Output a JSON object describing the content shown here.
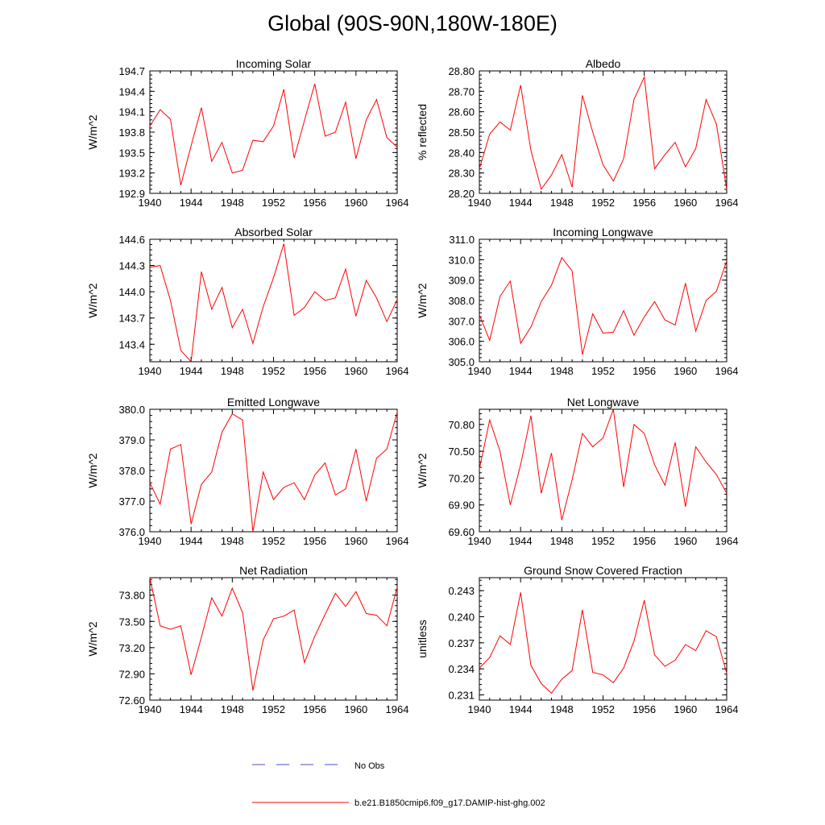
{
  "title": "Global (90S-90N,180W-180E)",
  "colors": {
    "model": "#ff0000",
    "obs": "#4a4ad0",
    "axis": "#000000"
  },
  "legend": {
    "obs_label": "No Obs",
    "model_label": "b.e21.B1850cmip6.f09_g17.DAMIP-hist-ghg.002"
  },
  "chart_data": [
    {
      "type": "line",
      "title": "Incoming Solar",
      "ylabel": "W/m^2",
      "xlim": [
        1940,
        1964
      ],
      "ylim": [
        192.9,
        194.7
      ],
      "x_ticks": [
        "1940",
        "1944",
        "1948",
        "1952",
        "1956",
        "1960",
        "1964"
      ],
      "y_ticks": [
        "192.9",
        "193.2",
        "193.5",
        "193.8",
        "194.1",
        "194.4",
        "194.7"
      ],
      "series": [
        {
          "x": [
            1940,
            1941,
            1942,
            1943,
            1944,
            1945,
            1946,
            1947,
            1948,
            1949,
            1950,
            1951,
            1952,
            1953,
            1954,
            1955,
            1956,
            1957,
            1958,
            1959,
            1960,
            1961,
            1962,
            1963,
            1964
          ],
          "values": [
            193.89,
            194.13,
            193.99,
            193.02,
            193.6,
            194.16,
            193.37,
            193.65,
            193.2,
            193.24,
            193.68,
            193.66,
            193.89,
            194.43,
            193.42,
            193.97,
            194.51,
            193.74,
            193.8,
            194.24,
            193.41,
            193.98,
            194.28,
            193.72,
            193.58
          ]
        }
      ]
    },
    {
      "type": "line",
      "title": "Albedo",
      "ylabel": "% reflected",
      "xlim": [
        1940,
        1964
      ],
      "ylim": [
        28.2,
        28.8
      ],
      "x_ticks": [
        "1940",
        "1944",
        "1948",
        "1952",
        "1956",
        "1960",
        "1964"
      ],
      "y_ticks": [
        "28.20",
        "28.30",
        "28.40",
        "28.50",
        "28.60",
        "28.70",
        "28.80"
      ],
      "series": [
        {
          "x": [
            1940,
            1941,
            1942,
            1943,
            1944,
            1945,
            1946,
            1947,
            1948,
            1949,
            1950,
            1951,
            1952,
            1953,
            1954,
            1955,
            1956,
            1957,
            1958,
            1959,
            1960,
            1961,
            1962,
            1963,
            1964
          ],
          "values": [
            28.32,
            28.49,
            28.55,
            28.51,
            28.73,
            28.41,
            28.22,
            28.29,
            28.39,
            28.23,
            28.68,
            28.5,
            28.34,
            28.26,
            28.37,
            28.66,
            28.77,
            28.32,
            28.39,
            28.45,
            28.33,
            28.42,
            28.66,
            28.54,
            28.22
          ]
        }
      ]
    },
    {
      "type": "line",
      "title": "Absorbed Solar",
      "ylabel": "W/m^2",
      "xlim": [
        1940,
        1964
      ],
      "ylim": [
        143.2,
        144.6
      ],
      "x_ticks": [
        "1940",
        "1944",
        "1948",
        "1952",
        "1956",
        "1960",
        "1964"
      ],
      "y_ticks": [
        "143.4",
        "143.7",
        "144.0",
        "144.3",
        "144.6"
      ],
      "series": [
        {
          "x": [
            1940,
            1941,
            1942,
            1943,
            1944,
            1945,
            1946,
            1947,
            1948,
            1949,
            1950,
            1951,
            1952,
            1953,
            1954,
            1955,
            1956,
            1957,
            1958,
            1959,
            1960,
            1961,
            1962,
            1963,
            1964
          ],
          "values": [
            144.28,
            144.3,
            143.9,
            143.33,
            143.2,
            144.23,
            143.8,
            144.05,
            143.59,
            143.8,
            143.41,
            143.83,
            144.16,
            144.55,
            143.73,
            143.82,
            144.0,
            143.9,
            143.93,
            144.26,
            143.72,
            144.13,
            143.93,
            143.66,
            143.91
          ]
        }
      ]
    },
    {
      "type": "line",
      "title": "Incoming Longwave",
      "ylabel": "W/m^2",
      "xlim": [
        1940,
        1964
      ],
      "ylim": [
        305.0,
        311.0
      ],
      "x_ticks": [
        "1940",
        "1944",
        "1948",
        "1952",
        "1956",
        "1960",
        "1964"
      ],
      "y_ticks": [
        "305.0",
        "306.0",
        "307.0",
        "308.0",
        "309.0",
        "310.0",
        "311.0"
      ],
      "series": [
        {
          "x": [
            1940,
            1941,
            1942,
            1943,
            1944,
            1945,
            1946,
            1947,
            1948,
            1949,
            1950,
            1951,
            1952,
            1953,
            1954,
            1955,
            1956,
            1957,
            1958,
            1959,
            1960,
            1961,
            1962,
            1963,
            1964
          ],
          "values": [
            307.3,
            306.05,
            308.2,
            308.95,
            305.9,
            306.7,
            307.95,
            308.75,
            310.1,
            309.45,
            305.35,
            307.35,
            306.4,
            306.45,
            307.5,
            306.3,
            307.2,
            307.95,
            307.05,
            306.8,
            308.85,
            306.5,
            308.0,
            308.45,
            309.95
          ]
        }
      ]
    },
    {
      "type": "line",
      "title": "Emitted Longwave",
      "ylabel": "W/m^2",
      "xlim": [
        1940,
        1964
      ],
      "ylim": [
        376.0,
        380.0
      ],
      "x_ticks": [
        "1940",
        "1944",
        "1948",
        "1952",
        "1956",
        "1960",
        "1964"
      ],
      "y_ticks": [
        "376.0",
        "377.0",
        "378.0",
        "379.0",
        "380.0"
      ],
      "series": [
        {
          "x": [
            1940,
            1941,
            1942,
            1943,
            1944,
            1945,
            1946,
            1947,
            1948,
            1949,
            1950,
            1951,
            1952,
            1953,
            1954,
            1955,
            1956,
            1957,
            1958,
            1959,
            1960,
            1961,
            1962,
            1963,
            1964
          ],
          "values": [
            377.6,
            376.9,
            378.7,
            378.85,
            376.25,
            377.55,
            377.95,
            379.25,
            379.85,
            379.65,
            376.0,
            377.95,
            377.05,
            377.45,
            377.6,
            377.05,
            377.85,
            378.25,
            377.2,
            377.4,
            378.7,
            377.0,
            378.4,
            378.7,
            379.9
          ]
        }
      ]
    },
    {
      "type": "line",
      "title": "Net Longwave",
      "ylabel": "W/m^2",
      "xlim": [
        1940,
        1964
      ],
      "ylim": [
        69.6,
        70.97
      ],
      "x_ticks": [
        "1940",
        "1944",
        "1948",
        "1952",
        "1956",
        "1960",
        "1964"
      ],
      "y_ticks": [
        "69.60",
        "69.90",
        "70.20",
        "70.50",
        "70.80"
      ],
      "series": [
        {
          "x": [
            1940,
            1941,
            1942,
            1943,
            1944,
            1945,
            1946,
            1947,
            1948,
            1949,
            1950,
            1951,
            1952,
            1953,
            1954,
            1955,
            1956,
            1957,
            1958,
            1959,
            1960,
            1961,
            1962,
            1963,
            1964
          ],
          "values": [
            70.3,
            70.85,
            70.5,
            69.9,
            70.35,
            70.9,
            70.03,
            70.48,
            69.73,
            70.18,
            70.7,
            70.55,
            70.65,
            70.97,
            70.1,
            70.8,
            70.7,
            70.35,
            70.12,
            70.6,
            69.88,
            70.55,
            70.38,
            70.24,
            70.03
          ]
        }
      ]
    },
    {
      "type": "line",
      "title": "Net Radiation",
      "ylabel": "W/m^2",
      "xlim": [
        1940,
        1964
      ],
      "ylim": [
        72.6,
        74.0
      ],
      "x_ticks": [
        "1940",
        "1944",
        "1948",
        "1952",
        "1956",
        "1960",
        "1964"
      ],
      "y_ticks": [
        "72.60",
        "72.90",
        "73.20",
        "73.50",
        "73.80"
      ],
      "series": [
        {
          "x": [
            1940,
            1941,
            1942,
            1943,
            1944,
            1945,
            1946,
            1947,
            1948,
            1949,
            1950,
            1951,
            1952,
            1953,
            1954,
            1955,
            1956,
            1957,
            1958,
            1959,
            1960,
            1961,
            1962,
            1963,
            1964
          ],
          "values": [
            74.0,
            73.45,
            73.41,
            73.45,
            72.89,
            73.32,
            73.77,
            73.56,
            73.88,
            73.6,
            72.71,
            73.29,
            73.53,
            73.56,
            73.63,
            73.03,
            73.33,
            73.58,
            73.82,
            73.67,
            73.84,
            73.59,
            73.57,
            73.45,
            73.89
          ]
        }
      ]
    },
    {
      "type": "line",
      "title": "Ground Snow Covered Fraction",
      "ylabel": "unitless",
      "xlim": [
        1940,
        1964
      ],
      "ylim": [
        0.2304,
        0.2445
      ],
      "x_ticks": [
        "1940",
        "1944",
        "1948",
        "1952",
        "1956",
        "1960",
        "1964"
      ],
      "y_ticks": [
        "0.231",
        "0.234",
        "0.237",
        "0.240",
        "0.243"
      ],
      "series": [
        {
          "x": [
            1940,
            1941,
            1942,
            1943,
            1944,
            1945,
            1946,
            1947,
            1948,
            1949,
            1950,
            1951,
            1952,
            1953,
            1954,
            1955,
            1956,
            1957,
            1958,
            1959,
            1960,
            1961,
            1962,
            1963,
            1964
          ],
          "values": [
            0.2341,
            0.2353,
            0.2378,
            0.2368,
            0.2428,
            0.2344,
            0.2323,
            0.2312,
            0.2328,
            0.2338,
            0.2408,
            0.2336,
            0.2333,
            0.2324,
            0.2341,
            0.2372,
            0.2419,
            0.2356,
            0.2343,
            0.235,
            0.2368,
            0.2361,
            0.2384,
            0.2377,
            0.2335
          ]
        }
      ]
    }
  ]
}
